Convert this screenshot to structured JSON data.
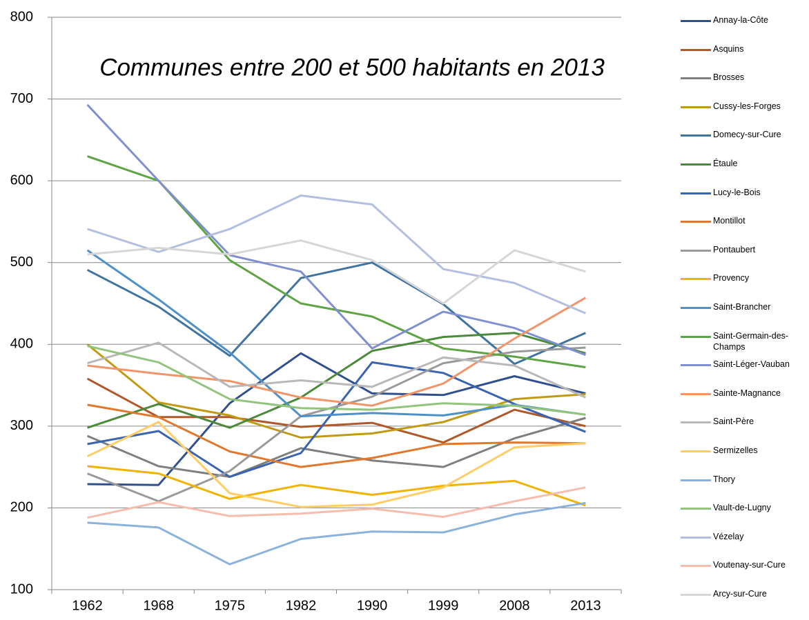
{
  "chart_data": {
    "type": "line",
    "title": "Communes entre 200 et 500 habitants en 2013",
    "categories": [
      "1962",
      "1968",
      "1975",
      "1982",
      "1990",
      "1999",
      "2008",
      "2013"
    ],
    "ylim": [
      100,
      800
    ],
    "yticks": [
      100,
      200,
      300,
      400,
      500,
      600,
      700,
      800
    ],
    "grid": true,
    "legend": "right",
    "series": [
      {
        "name": "Annay-la-Côte",
        "color": "#2f4f8f",
        "values": [
          229,
          228,
          328,
          389,
          340,
          338,
          361,
          340
        ]
      },
      {
        "name": "Asquins",
        "color": "#b0582a",
        "values": [
          358,
          311,
          311,
          299,
          304,
          280,
          320,
          300
        ]
      },
      {
        "name": "Brosses",
        "color": "#7f7f7f",
        "values": [
          288,
          251,
          238,
          273,
          258,
          250,
          285,
          310
        ]
      },
      {
        "name": "Cussy-les-Forges",
        "color": "#c09a12",
        "values": [
          400,
          329,
          313,
          286,
          291,
          305,
          333,
          339
        ]
      },
      {
        "name": "Domecy-sur-Cure",
        "color": "#3f73a0",
        "values": [
          491,
          446,
          386,
          481,
          500,
          449,
          376,
          414
        ]
      },
      {
        "name": "Étaule",
        "color": "#4a8a3a",
        "values": [
          298,
          327,
          298,
          335,
          392,
          409,
          414,
          389
        ]
      },
      {
        "name": "Lucy-le-Bois",
        "color": "#3a64b0",
        "values": [
          278,
          294,
          238,
          267,
          378,
          365,
          327,
          293
        ]
      },
      {
        "name": "Montillot",
        "color": "#e0782e",
        "values": [
          326,
          311,
          269,
          250,
          261,
          278,
          280,
          279
        ]
      },
      {
        "name": "Pontaubert",
        "color": "#9a9a9a",
        "values": [
          242,
          208,
          245,
          312,
          336,
          377,
          391,
          396
        ]
      },
      {
        "name": "Provency",
        "color": "#f0b400",
        "values": [
          251,
          242,
          211,
          228,
          216,
          227,
          233,
          203
        ]
      },
      {
        "name": "Saint-Brancher",
        "color": "#4f90c8",
        "values": [
          515,
          455,
          390,
          312,
          316,
          313,
          326,
          314
        ]
      },
      {
        "name": "Saint-Germain-des-Champs",
        "color": "#5ea444",
        "values": [
          630,
          600,
          503,
          450,
          434,
          395,
          385,
          372
        ]
      },
      {
        "name": "Saint-Léger-Vauban",
        "color": "#7f8fd0",
        "values": [
          693,
          600,
          509,
          489,
          395,
          440,
          420,
          387
        ]
      },
      {
        "name": "Sainte-Magnance",
        "color": "#f0946a",
        "values": [
          374,
          364,
          355,
          335,
          325,
          352,
          407,
          457
        ]
      },
      {
        "name": "Saint-Père",
        "color": "#b8b8b8",
        "values": [
          377,
          402,
          348,
          356,
          348,
          384,
          374,
          335
        ]
      },
      {
        "name": "Sermizelles",
        "color": "#ffcc66",
        "values": [
          263,
          305,
          218,
          201,
          204,
          225,
          274,
          279
        ]
      },
      {
        "name": "Thory",
        "color": "#8ab2dc",
        "values": [
          182,
          176,
          131,
          162,
          171,
          170,
          192,
          206
        ]
      },
      {
        "name": "Vault-de-Lugny",
        "color": "#92c47e",
        "values": [
          398,
          378,
          333,
          322,
          320,
          328,
          325,
          314
        ]
      },
      {
        "name": "Vézelay",
        "color": "#b4bee0",
        "values": [
          541,
          513,
          541,
          582,
          571,
          492,
          475,
          438
        ]
      },
      {
        "name": "Voutenay-sur-Cure",
        "color": "#f6bcae",
        "values": [
          188,
          207,
          190,
          193,
          199,
          189,
          208,
          225
        ]
      },
      {
        "name": "Arcy-sur-Cure",
        "color": "#d6d6d6",
        "values": [
          510,
          518,
          510,
          527,
          503,
          450,
          515,
          489
        ]
      }
    ]
  }
}
